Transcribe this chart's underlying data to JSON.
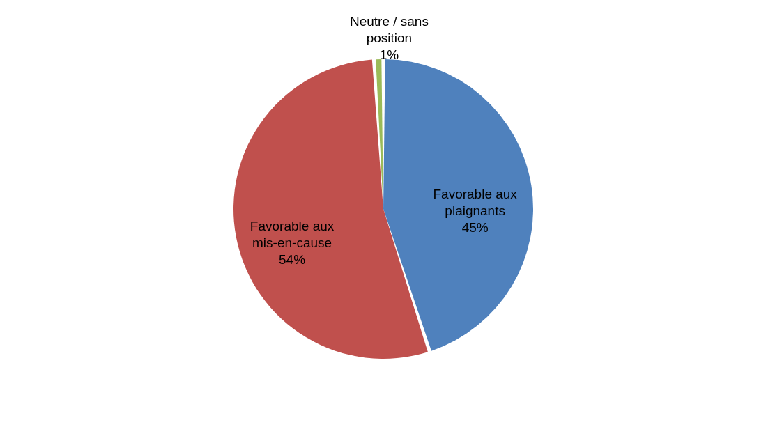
{
  "chart_data": {
    "type": "pie",
    "categories": [
      "Favorable aux plaignants",
      "Favorable aux mis-en-cause",
      "Neutre / sans position"
    ],
    "values": [
      45,
      54,
      1
    ],
    "value_labels": [
      "45%",
      "54%",
      "1%"
    ],
    "colors": [
      "#4f81bd",
      "#c0504d",
      "#9bbb59"
    ],
    "legend": false
  }
}
